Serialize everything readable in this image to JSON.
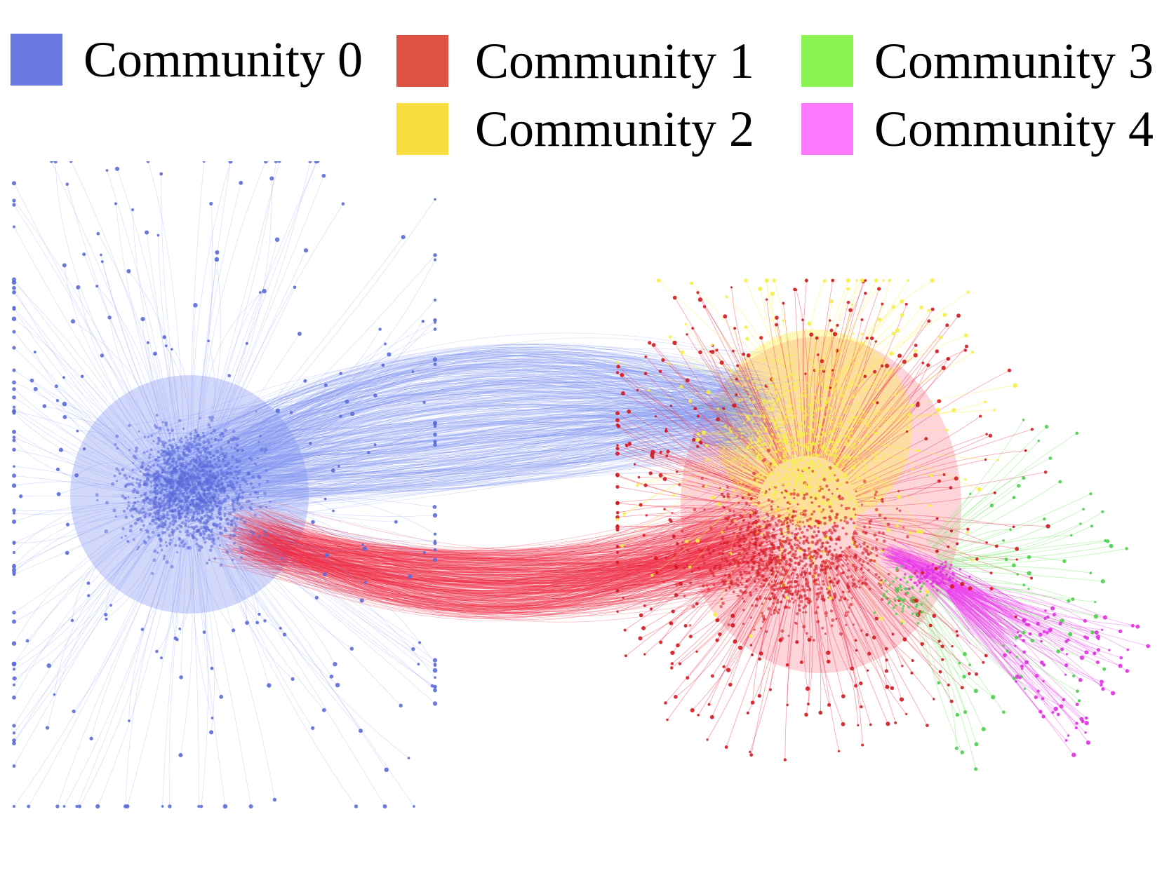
{
  "legend": {
    "items": [
      {
        "id": "c0",
        "label": "Community 0",
        "color": "#6a78e0"
      },
      {
        "id": "c1",
        "label": "Community 1",
        "color": "#e05244"
      },
      {
        "id": "c2",
        "label": "Community 2",
        "color": "#f9dd3d"
      },
      {
        "id": "c3",
        "label": "Community 3",
        "color": "#8af552"
      },
      {
        "id": "c4",
        "label": "Community 4",
        "color": "#fb79fc"
      }
    ]
  },
  "graph": {
    "edge_colors": {
      "c0": "#7b8ef0",
      "c1": "#ee2a45",
      "c2": "#fff23a",
      "c3": "#6ee860",
      "c4": "#ee44ee"
    },
    "node_colors": {
      "c0": "#5a6ad8",
      "c1": "#d41820",
      "c2": "#f6f040",
      "c3": "#4ad04a",
      "c4": "#e030e0"
    }
  }
}
